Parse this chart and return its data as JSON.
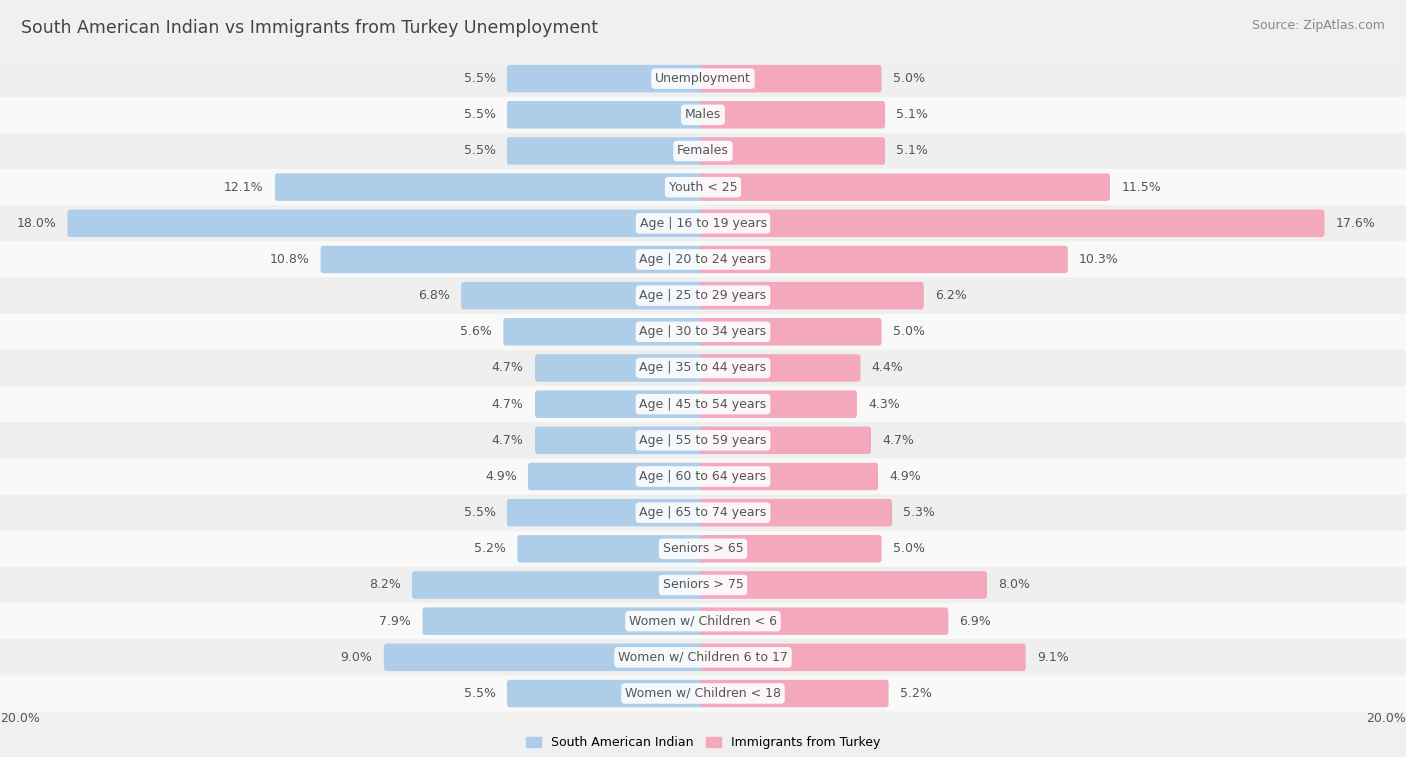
{
  "title": "South American Indian vs Immigrants from Turkey Unemployment",
  "source": "Source: ZipAtlas.com",
  "categories": [
    "Unemployment",
    "Males",
    "Females",
    "Youth < 25",
    "Age | 16 to 19 years",
    "Age | 20 to 24 years",
    "Age | 25 to 29 years",
    "Age | 30 to 34 years",
    "Age | 35 to 44 years",
    "Age | 45 to 54 years",
    "Age | 55 to 59 years",
    "Age | 60 to 64 years",
    "Age | 65 to 74 years",
    "Seniors > 65",
    "Seniors > 75",
    "Women w/ Children < 6",
    "Women w/ Children 6 to 17",
    "Women w/ Children < 18"
  ],
  "left_values": [
    5.5,
    5.5,
    5.5,
    12.1,
    18.0,
    10.8,
    6.8,
    5.6,
    4.7,
    4.7,
    4.7,
    4.9,
    5.5,
    5.2,
    8.2,
    7.9,
    9.0,
    5.5
  ],
  "right_values": [
    5.0,
    5.1,
    5.1,
    11.5,
    17.6,
    10.3,
    6.2,
    5.0,
    4.4,
    4.3,
    4.7,
    4.9,
    5.3,
    5.0,
    8.0,
    6.9,
    9.1,
    5.2
  ],
  "max_val": 20.0,
  "blue_color": "#aecde8",
  "pink_color": "#f4a8bc",
  "blue_label": "South American Indian",
  "pink_label": "Immigrants from Turkey",
  "bar_height": 0.6,
  "label_fontsize": 9.0,
  "title_fontsize": 12.5,
  "source_fontsize": 9.0,
  "row_colors": [
    "#efefef",
    "#f9f9f9"
  ]
}
